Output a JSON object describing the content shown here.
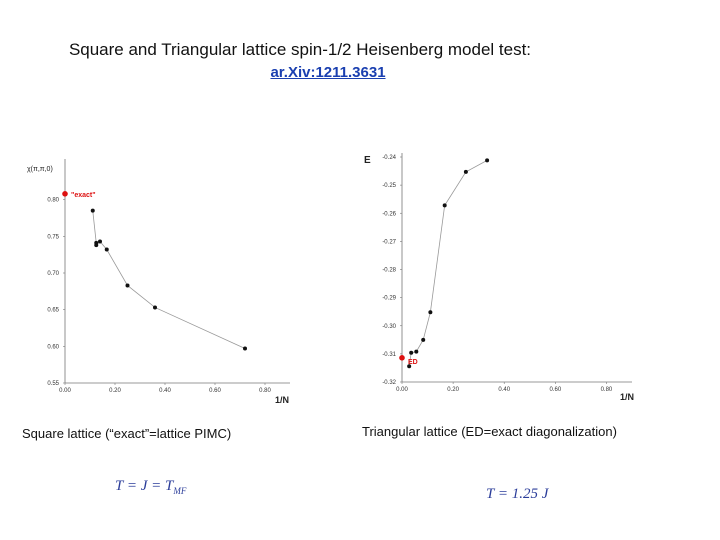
{
  "title": "Square and Triangular lattice spin-1/2 Heisenberg model test:",
  "link_text": "ar.Xiv:1211.3631",
  "left_caption": "Square lattice (“exact”=lattice PIMC)",
  "right_caption": "Triangular lattice (ED=exact diagonalization)",
  "left_formula": "T = J = T_MF",
  "right_formula": "T = 1.25 J",
  "chart_data": [
    {
      "type": "line",
      "ylabel": "χ(π,π,0)",
      "xlabel": "1/N",
      "xlim": [
        0.0,
        0.9
      ],
      "ylim": [
        0.55,
        0.85
      ],
      "xticks": [
        "0.00",
        "0.20",
        "0.40",
        "0.60",
        "0.80"
      ],
      "yticks": [
        "0.55",
        "0.60",
        "0.65",
        "0.70",
        "0.75",
        "0.80"
      ],
      "series": [
        {
          "name": "",
          "color": "#111111",
          "x": [
            0.111,
            0.125,
            0.125,
            0.14,
            0.167,
            0.25,
            0.36,
            0.72
          ],
          "y": [
            0.785,
            0.741,
            0.738,
            0.743,
            0.732,
            0.683,
            0.653,
            0.597
          ]
        }
      ],
      "reference": {
        "label": "\"exact\"",
        "x": 0.0,
        "y": 0.808,
        "color": "#dd1111"
      }
    },
    {
      "type": "line",
      "ylabel": "E",
      "xlabel": "1/N",
      "xlim": [
        0.0,
        0.9
      ],
      "ylim": [
        -0.32,
        -0.24
      ],
      "xticks": [
        "0.00",
        "0.20",
        "0.40",
        "0.60",
        "0.80"
      ],
      "yticks": [
        "-0.24",
        "-0.25",
        "-0.26",
        "-0.27",
        "-0.28",
        "-0.29",
        "-0.30",
        "-0.31",
        "-0.32"
      ],
      "series": [
        {
          "name": "",
          "color": "#111111",
          "x": [
            0.028,
            0.036,
            0.056,
            0.083,
            0.111,
            0.167,
            0.25,
            0.333
          ],
          "y": [
            -0.3144,
            -0.3096,
            -0.3092,
            -0.305,
            -0.2952,
            -0.2572,
            -0.2453,
            -0.2412
          ]
        }
      ],
      "reference": {
        "label": "ED",
        "x": 0.0,
        "y": -0.3114,
        "color": "#dd1111"
      }
    }
  ]
}
